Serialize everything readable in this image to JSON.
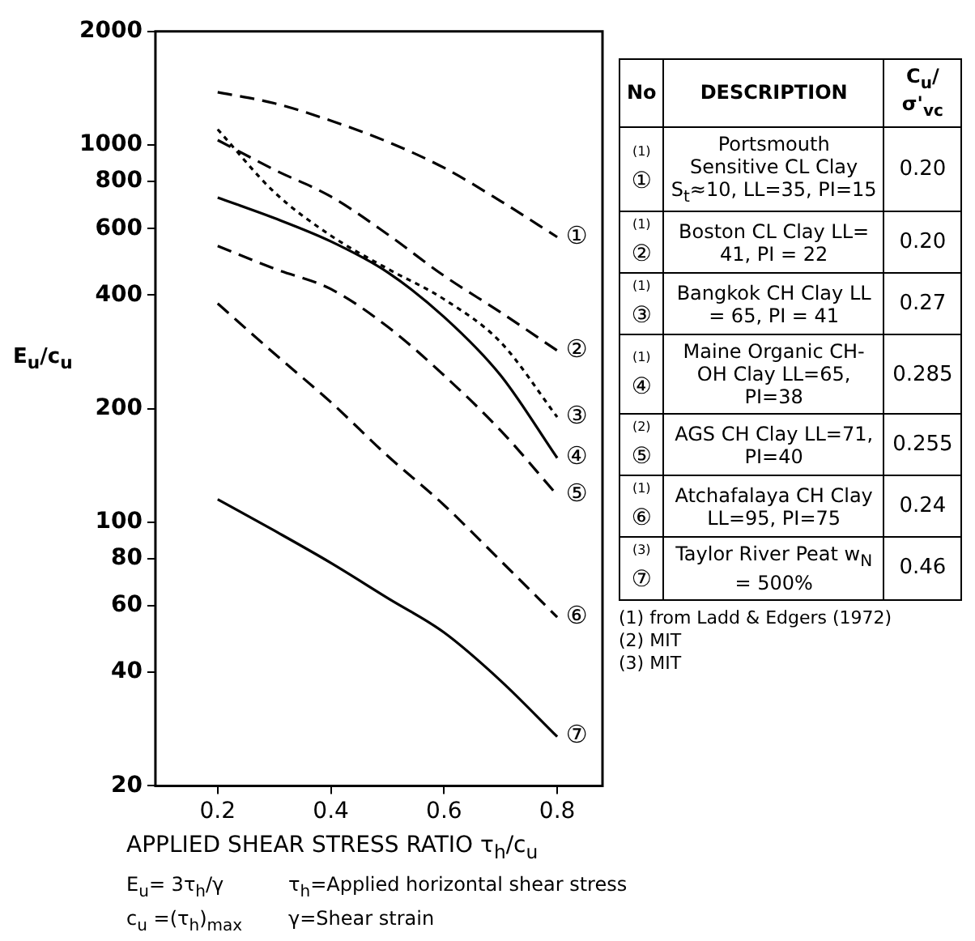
{
  "chart_data": {
    "type": "line",
    "xlabel": "APPLIED SHEAR STRESS RATIO τ$_{h}$/c$_{u}$",
    "ylabel": "E$_{u}$/c$_{u}$",
    "log": "y",
    "grid": false,
    "legend": "right",
    "marker": "none",
    "xlim": [
      0.09,
      0.88
    ],
    "xticks": [
      0.2,
      0.4,
      0.6,
      0.8
    ],
    "ylim": [
      20,
      2000
    ],
    "yticks": [
      20,
      40,
      60,
      80,
      100,
      200,
      400,
      600,
      800,
      1000,
      2000
    ],
    "x": [
      0.2,
      0.3,
      0.4,
      0.5,
      0.6,
      0.7,
      0.8
    ],
    "series": [
      {
        "name": "Portsmouth Sensitive CL Clay S$_{t}$≈10, LL=35, PI=15",
        "color": "#000000",
        "line_style": "dashed",
        "values": [
          1380,
          1290,
          1160,
          1020,
          870,
          710,
          570
        ]
      },
      {
        "name": "Boston CL Clay LL= 41, PI = 22",
        "color": "#000000",
        "line_style": "dashed",
        "values": [
          1030,
          860,
          730,
          580,
          450,
          360,
          285
        ]
      },
      {
        "name": "Bangkok CH Clay LL = 65, PI = 41",
        "color": "#000000",
        "line_style": "dotted",
        "values": [
          1100,
          750,
          575,
          470,
          390,
          300,
          190
        ]
      },
      {
        "name": "Maine Organic CH-OH Clay LL=65, PI=38",
        "color": "#000000",
        "line_style": "solid",
        "values": [
          725,
          640,
          555,
          460,
          350,
          245,
          148
        ]
      },
      {
        "name": "AGS CH Clay LL=71, PI=40",
        "color": "#000000",
        "line_style": "dashed",
        "values": [
          540,
          470,
          415,
          330,
          245,
          175,
          118
        ]
      },
      {
        "name": "Atchafalaya CH Clay LL=95, PI=75",
        "color": "#000000",
        "line_style": "dashed",
        "values": [
          380,
          280,
          208,
          150,
          111,
          79,
          56
        ]
      },
      {
        "name": "Taylor River Peat w$_{N}$ = 500%",
        "color": "#000000",
        "line_style": "solid",
        "values": [
          115,
          95,
          78,
          63,
          51,
          38,
          27
        ]
      }
    ],
    "annotations": [
      "①",
      "②",
      "③",
      "④",
      "⑤",
      "⑥",
      "⑦",
      "No",
      "DESCRIPTION",
      "C$_{u}$/σ'$_{vc}$",
      "(1)",
      "(1)",
      "(1)",
      "(1)",
      "(2)",
      "(1)",
      "(3)",
      "0.20",
      "0.20",
      "0.27",
      "0.285",
      "0.255",
      "0.24",
      "0.46",
      "(1) from Ladd & Edgers (1972)",
      "(2) MIT",
      "(3) MIT",
      "E$_{u}$= 3τ$_{h}$/γ",
      "τ$_{h}$=Applied horizontal shear stress",
      "c$_{u}$ =(τ$_{h}$)$_{max}$",
      "γ=Shear strain"
    ]
  }
}
